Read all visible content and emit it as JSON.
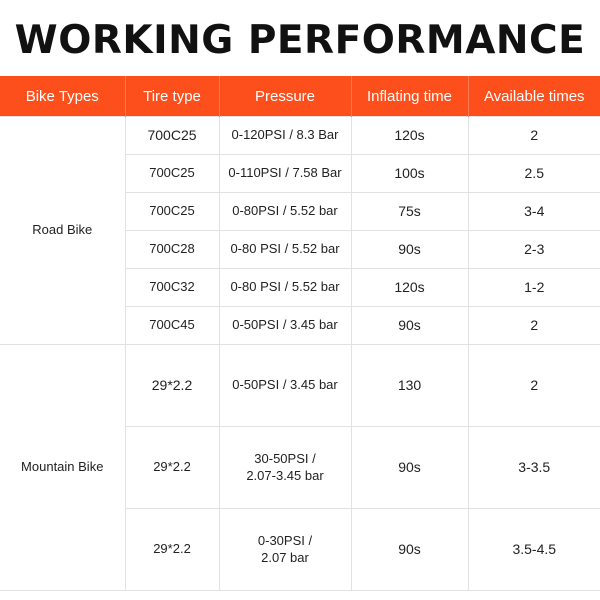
{
  "title": "WORKING PERFORMANCE",
  "header_color": "#fc4f1c",
  "columns": [
    "Bike Types",
    "Tire type",
    "Pressure",
    "Inflating time",
    "Available times"
  ],
  "groups": [
    {
      "bike_type": "Road Bike",
      "rows": [
        {
          "tire": "700C25",
          "pressure": "0-120PSI / 8.3 Bar",
          "time": "120s",
          "available": "2"
        },
        {
          "tire": "700C25",
          "pressure": "0-110PSI / 7.58 Bar",
          "time": "100s",
          "available": "2.5"
        },
        {
          "tire": "700C25",
          "pressure": "0-80PSI / 5.52 bar",
          "time": "75s",
          "available": "3-4"
        },
        {
          "tire": "700C28",
          "pressure": "0-80 PSI / 5.52 bar",
          "time": "90s",
          "available": "2-3"
        },
        {
          "tire": "700C32",
          "pressure": "0-80 PSI / 5.52 bar",
          "time": "120s",
          "available": "1-2"
        },
        {
          "tire": "700C45",
          "pressure": "0-50PSI / 3.45 bar",
          "time": "90s",
          "available": "2"
        }
      ]
    },
    {
      "bike_type": "Mountain Bike",
      "rows": [
        {
          "tire": "29*2.2",
          "pressure": "0-50PSI / 3.45 bar",
          "time": "130",
          "available": "2"
        },
        {
          "tire": "29*2.2",
          "pressure": "30-50PSI / 2.07-3.45 bar",
          "time": "90s",
          "available": "3-3.5"
        },
        {
          "tire": "29*2.2",
          "pressure": "0-30PSI / 2.07 bar",
          "time": "90s",
          "available": "3.5-4.5"
        }
      ]
    }
  ]
}
